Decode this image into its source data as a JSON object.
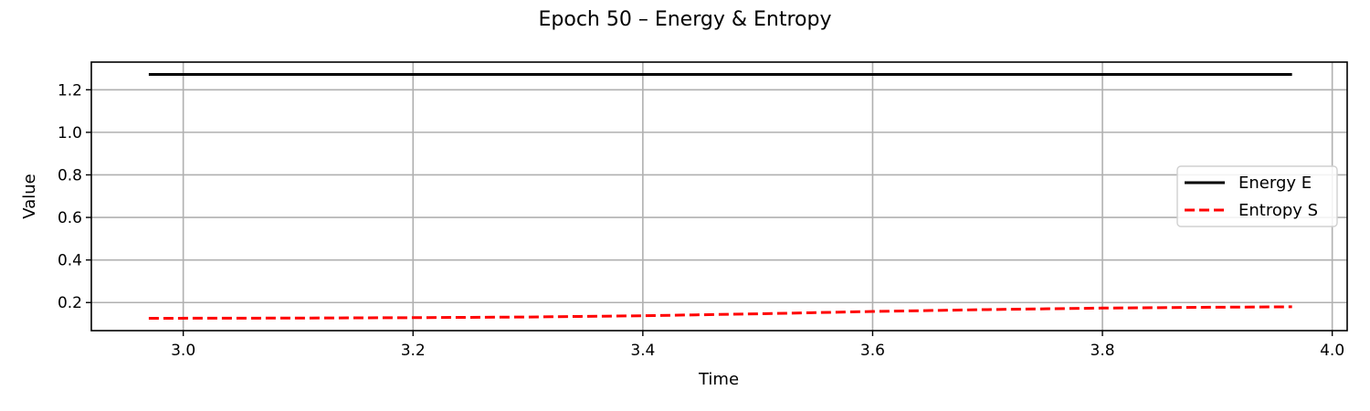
{
  "chart_data": {
    "type": "line",
    "title": "Epoch 50 – Energy & Entropy",
    "xlabel": "Time",
    "ylabel": "Value",
    "xlim": [
      2.92,
      4.013
    ],
    "ylim": [
      0.068,
      1.33
    ],
    "xticks": [
      3.0,
      3.2,
      3.4,
      3.6,
      3.8,
      4.0
    ],
    "yticks": [
      0.2,
      0.4,
      0.6,
      0.8,
      1.0,
      1.2
    ],
    "xtick_labels": [
      "3.0",
      "3.2",
      "3.4",
      "3.6",
      "3.8",
      "4.0"
    ],
    "ytick_labels": [
      "0.2",
      "0.4",
      "0.6",
      "0.8",
      "1.0",
      "1.2"
    ],
    "grid": true,
    "legend_position": "center-right",
    "series": [
      {
        "name": "Energy E",
        "color": "#000000",
        "style": "solid",
        "x": [
          2.97,
          3.2,
          3.4,
          3.6,
          3.8,
          3.965
        ],
        "y": [
          1.272,
          1.272,
          1.272,
          1.272,
          1.272,
          1.272
        ]
      },
      {
        "name": "Entropy S",
        "color": "#ff0000",
        "style": "dashed",
        "x": [
          2.97,
          3.1,
          3.2,
          3.3,
          3.4,
          3.5,
          3.6,
          3.7,
          3.8,
          3.9,
          3.965
        ],
        "y": [
          0.126,
          0.127,
          0.129,
          0.132,
          0.138,
          0.147,
          0.158,
          0.167,
          0.174,
          0.178,
          0.18
        ]
      }
    ]
  }
}
